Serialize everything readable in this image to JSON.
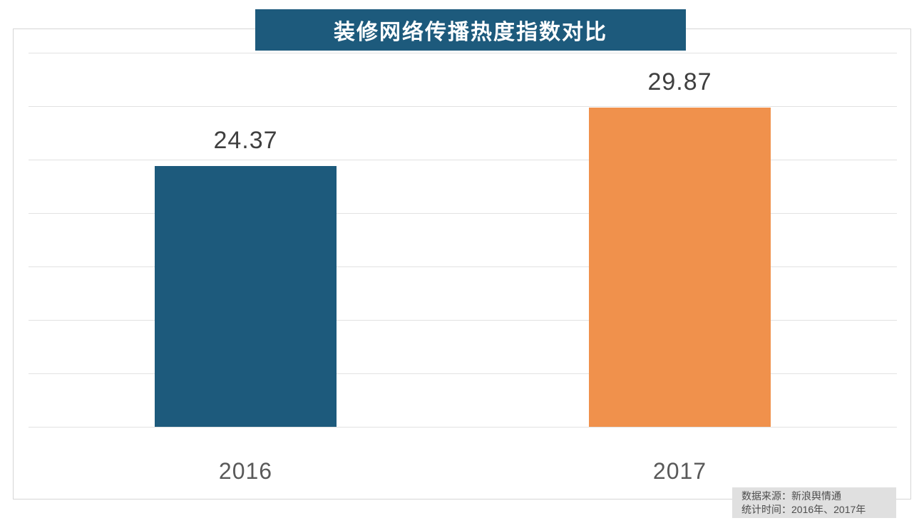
{
  "title": "装修网络传播热度指数对比",
  "source_box": {
    "line1": "数据来源：新浪舆情通",
    "line2": "统计时间：2016年、2017年"
  },
  "chart_data": {
    "type": "bar",
    "title": "装修网络传播热度指数对比",
    "categories": [
      "2016",
      "2017"
    ],
    "values": [
      24.37,
      29.87
    ],
    "value_labels": [
      "24.37",
      "29.87"
    ],
    "bar_colors": [
      "#1D5A7C",
      "#F0914C"
    ],
    "ylim": [
      0,
      35
    ],
    "grid_step": 5,
    "grid": true,
    "legend": "none",
    "xlabel": "",
    "ylabel": "",
    "annotations": [
      "数据来源：新浪舆情通",
      "统计时间：2016年、2017年"
    ]
  },
  "colors": {
    "title_bg": "#1D5A7C",
    "title_text": "#FFFFFF",
    "bar_2016": "#1D5A7C",
    "bar_2017": "#F0914C",
    "gridline": "#E2E2E2",
    "frame_border": "#D6D6D6",
    "value_label_text": "#3F3F3F",
    "category_label_text": "#595959",
    "source_bg": "#E0E0E0",
    "source_text": "#4D4D4D"
  }
}
